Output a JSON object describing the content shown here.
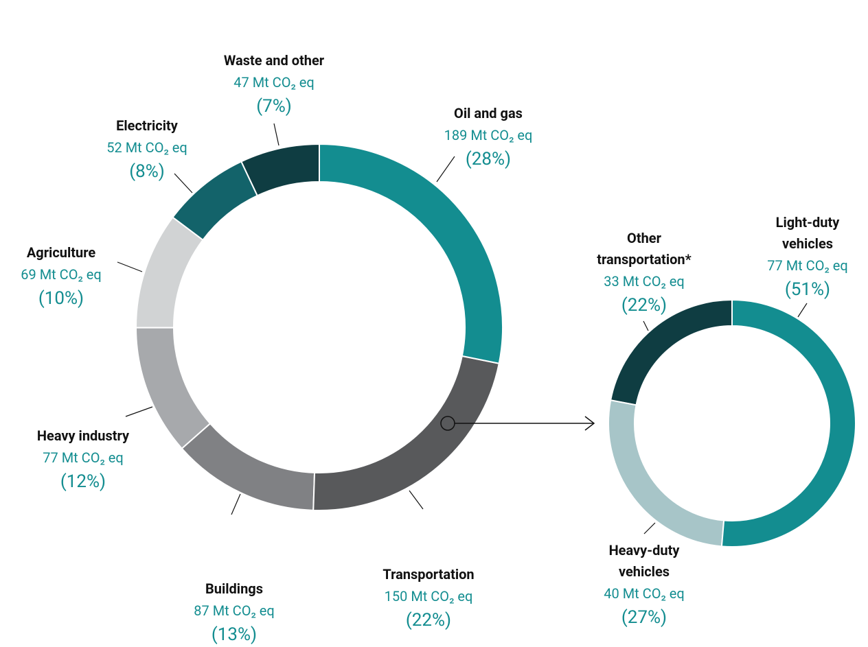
{
  "chart_data": [
    {
      "type": "pie",
      "categories": [
        "Oil and gas",
        "Transportation",
        "Buildings",
        "Heavy industry",
        "Agriculture",
        "Electricity",
        "Waste and other"
      ],
      "values": [
        189,
        150,
        87,
        77,
        69,
        52,
        47
      ],
      "value_labels": [
        "189 Mt CO₂ eq",
        "150 Mt CO₂ eq",
        "87 Mt CO₂ eq",
        "77 Mt CO₂ eq",
        "69 Mt CO₂ eq",
        "52 Mt CO₂ eq",
        "47 Mt CO₂ eq"
      ],
      "shares": [
        28,
        22,
        13,
        12,
        10,
        8,
        7
      ],
      "share_labels": [
        "(28%)",
        "(22%)",
        "(13%)",
        "(12%)",
        "(10%)",
        "(8%)",
        "(7%)"
      ],
      "colors": [
        "#138d90",
        "#58595b",
        "#808184",
        "#a7a9ac",
        "#d1d3d4",
        "#13636a",
        "#0f3d42"
      ]
    },
    {
      "type": "pie",
      "categories": [
        "Light-duty vehicles",
        "Heavy-duty vehicles",
        "Other transportation*"
      ],
      "values": [
        77,
        40,
        33
      ],
      "value_labels": [
        "77 Mt CO₂ eq",
        "40 Mt CO₂ eq",
        "33 Mt CO₂ eq"
      ],
      "shares": [
        51,
        27,
        22
      ],
      "share_labels": [
        "(51%)",
        "(27%)",
        "(22%)"
      ],
      "colors": [
        "#138d90",
        "#a7c5c8",
        "#0f3d42"
      ]
    }
  ]
}
